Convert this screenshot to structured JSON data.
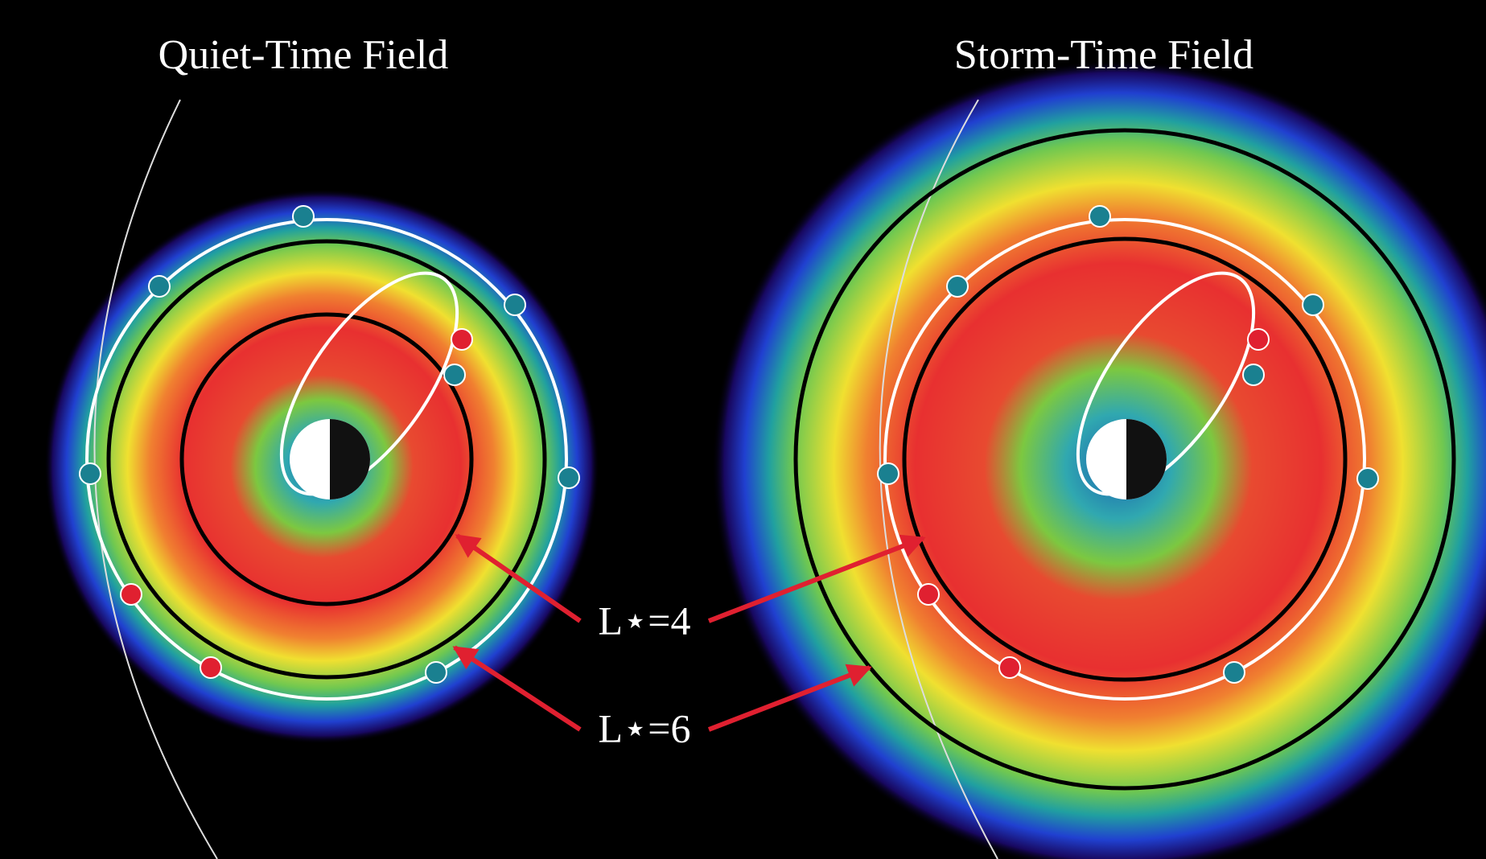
{
  "panels": [
    {
      "title": "Quiet-Time Field"
    },
    {
      "title": "Storm-Time Field"
    }
  ],
  "labels": [
    {
      "text": "L⋆=4"
    },
    {
      "text": "L⋆=6"
    }
  ]
}
